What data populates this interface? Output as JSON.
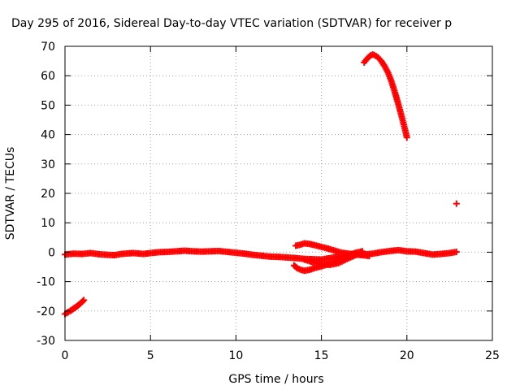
{
  "chart_data": {
    "type": "scatter",
    "title": "Day 295 of 2016, Sidereal Day-to-day VTEC variation (SDTVAR) for receiver p",
    "xlabel": "GPS time / hours",
    "ylabel": "SDTVAR / TECUs",
    "xlim": [
      0,
      25
    ],
    "ylim": [
      -30,
      70
    ],
    "x_ticks": [
      0,
      5,
      10,
      15,
      20,
      25
    ],
    "y_ticks": [
      -30,
      -20,
      -10,
      0,
      10,
      20,
      30,
      40,
      50,
      60,
      70
    ],
    "grid": true,
    "marker": "+",
    "color": "#ff0000",
    "series": [
      {
        "name": "early-negative-arc",
        "x": [
          0.0,
          0.1,
          0.2,
          0.3,
          0.4,
          0.5,
          0.6,
          0.7,
          0.8,
          0.9,
          1.0,
          1.1
        ],
        "y": [
          -21.0,
          -20.7,
          -20.3,
          -20.0,
          -19.6,
          -19.2,
          -18.8,
          -18.4,
          -17.9,
          -17.4,
          -16.9,
          -16.3
        ]
      },
      {
        "name": "baseline-near-zero",
        "x": [
          0.0,
          0.5,
          1.0,
          1.5,
          2.0,
          2.5,
          2.9,
          3.3,
          3.7,
          4.0,
          4.6,
          5.0,
          5.5,
          6.0,
          6.5,
          7.0,
          7.5,
          8.0,
          8.5,
          9.0,
          9.5,
          10.0,
          10.5,
          11.0,
          11.5,
          12.0,
          12.5,
          13.0,
          13.5,
          14.0,
          14.5,
          15.0,
          15.5,
          16.0,
          16.5,
          17.0,
          17.5,
          18.0,
          18.5,
          19.0,
          19.5,
          20.0,
          20.5,
          21.0,
          21.5,
          22.0,
          22.5,
          22.9
        ],
        "y": [
          -0.8,
          -0.5,
          -0.6,
          -0.3,
          -0.7,
          -0.9,
          -1.0,
          -0.6,
          -0.4,
          -0.3,
          -0.6,
          -0.3,
          0.0,
          0.1,
          0.3,
          0.5,
          0.3,
          0.2,
          0.3,
          0.4,
          0.1,
          -0.2,
          -0.5,
          -0.9,
          -1.2,
          -1.5,
          -1.6,
          -1.8,
          -2.0,
          -2.3,
          -2.4,
          -2.5,
          -2.0,
          -1.5,
          -1.0,
          -0.6,
          -0.8,
          -0.5,
          0.0,
          0.4,
          0.7,
          0.3,
          0.2,
          -0.3,
          -0.8,
          -0.6,
          -0.3,
          0.1
        ]
      },
      {
        "name": "mid-oscillation-upper",
        "x": [
          13.5,
          13.8,
          14.0,
          14.3,
          14.6,
          15.0,
          15.4,
          15.8,
          16.2,
          16.6,
          17.0,
          17.4,
          17.8
        ],
        "y": [
          2.2,
          2.6,
          3.0,
          2.8,
          2.4,
          1.8,
          1.2,
          0.5,
          -0.2,
          -0.5,
          -0.8,
          -1.0,
          -1.3
        ]
      },
      {
        "name": "mid-oscillation-lower",
        "x": [
          13.4,
          13.6,
          13.8,
          14.0,
          14.3,
          14.6,
          15.0,
          15.4,
          15.8,
          16.2,
          16.6,
          17.0,
          17.4
        ],
        "y": [
          -4.5,
          -5.5,
          -6.0,
          -6.3,
          -6.0,
          -5.4,
          -4.8,
          -4.1,
          -3.2,
          -2.1,
          -1.0,
          -0.2,
          0.3
        ]
      },
      {
        "name": "mid-oscillation-cross",
        "x": [
          14.0,
          14.5,
          15.0,
          15.5,
          16.0,
          16.5,
          17.0
        ],
        "y": [
          -2.5,
          -3.4,
          -4.0,
          -4.3,
          -3.7,
          -2.3,
          -1.0
        ]
      },
      {
        "name": "afternoon-high-arc",
        "x": [
          17.5,
          17.7,
          17.9,
          18.0,
          18.1,
          18.3,
          18.5,
          18.7,
          18.9,
          19.1,
          19.3,
          19.5,
          19.7,
          19.9,
          20.0
        ],
        "y": [
          64.5,
          66.0,
          67.0,
          67.2,
          67.0,
          66.3,
          65.0,
          63.2,
          61.0,
          58.0,
          54.3,
          50.3,
          46.0,
          41.5,
          39.0
        ]
      },
      {
        "name": "isolated-point",
        "x": [
          22.9
        ],
        "y": [
          16.5
        ]
      }
    ]
  }
}
